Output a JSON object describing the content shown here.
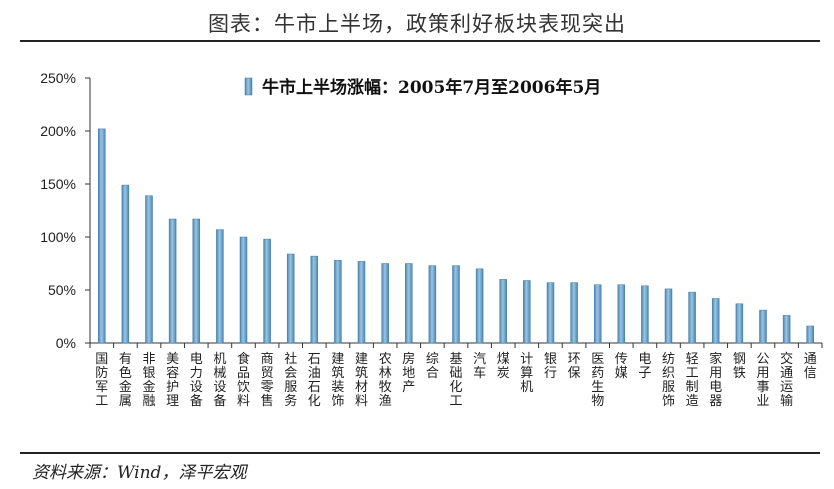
{
  "page_title": "图表：牛市上半场，政策利好板块表现突出",
  "source_note": "资料来源：Wind，泽平宏观",
  "chart_data": {
    "type": "bar",
    "title": "",
    "xlabel": "",
    "ylabel": "",
    "ylim": [
      0,
      250
    ],
    "y_ticks": [
      "0%",
      "50%",
      "100%",
      "150%",
      "200%",
      "250%"
    ],
    "y_tick_values": [
      0,
      50,
      100,
      150,
      200,
      250
    ],
    "legend_position": "top",
    "grid": false,
    "bar_color": "#6fa3c7",
    "series": [
      {
        "name": "牛市上半场涨幅：2005年7月至2006年5月",
        "values": [
          202,
          149,
          139,
          117,
          117,
          107,
          100,
          98,
          84,
          82,
          78,
          77,
          75,
          75,
          73,
          73,
          70,
          60,
          59,
          57,
          57,
          55,
          55,
          54,
          51,
          48,
          42,
          37,
          31,
          26,
          16
        ]
      }
    ],
    "categories": [
      "国防军工",
      "有色金属",
      "非银金融",
      "美容护理",
      "电力设备",
      "机械设备",
      "食品饮料",
      "商贸零售",
      "社会服务",
      "石油石化",
      "建筑装饰",
      "建筑材料",
      "农林牧渔",
      "房地产",
      "综合",
      "基础化工",
      "汽车",
      "煤炭",
      "计算机",
      "银行",
      "环保",
      "医药生物",
      "传媒",
      "电子",
      "纺织服饰",
      "轻工制造",
      "家用电器",
      "钢铁",
      "公用事业",
      "交通运输",
      "通信"
    ]
  }
}
